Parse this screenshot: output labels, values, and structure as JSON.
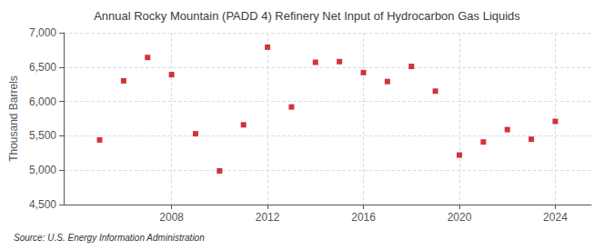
{
  "chart_data": {
    "type": "scatter",
    "title": "Annual Rocky Mountain (PADD 4) Refinery Net Input of Hydrocarbon Gas Liquids",
    "ylabel": "Thousand Barrels",
    "source": "Source: U.S. Energy Information Administration",
    "x": [
      2005,
      2006,
      2007,
      2008,
      2009,
      2010,
      2011,
      2012,
      2013,
      2014,
      2015,
      2016,
      2017,
      2018,
      2019,
      2020,
      2021,
      2022,
      2023,
      2024
    ],
    "values": [
      5440,
      6300,
      6640,
      6390,
      5530,
      4990,
      5660,
      6790,
      5920,
      6570,
      6580,
      6420,
      6290,
      6510,
      6150,
      5220,
      5410,
      5590,
      5450,
      5710
    ],
    "color": "#cc0000",
    "marker": "square",
    "xlim": [
      2003.5,
      2025.5
    ],
    "xticks": [
      2008,
      2012,
      2016,
      2020,
      2024
    ],
    "ylim": [
      4500,
      7000
    ],
    "yticks": [
      {
        "value": 4500,
        "label": "4,500"
      },
      {
        "value": 5000,
        "label": "5,000"
      },
      {
        "value": 5500,
        "label": "5,500"
      },
      {
        "value": 6000,
        "label": "6,000"
      },
      {
        "value": 6500,
        "label": "6,500"
      },
      {
        "value": 7000,
        "label": "7,000"
      }
    ],
    "grid": true
  }
}
